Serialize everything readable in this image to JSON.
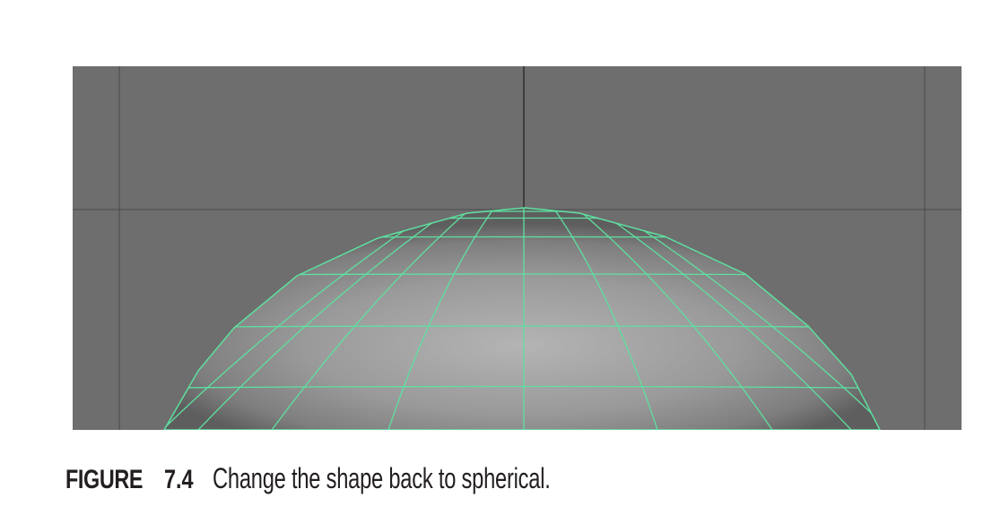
{
  "figure": {
    "viewport": {
      "background_color": "#6e6e6e",
      "grid_line_color": "#3a3a3a",
      "wire_color": "#5ee0a0",
      "object": "sphere-wireframe"
    },
    "caption": {
      "label": "FIGURE",
      "number": "7.4",
      "text": "Change the shape back to spherical."
    }
  }
}
